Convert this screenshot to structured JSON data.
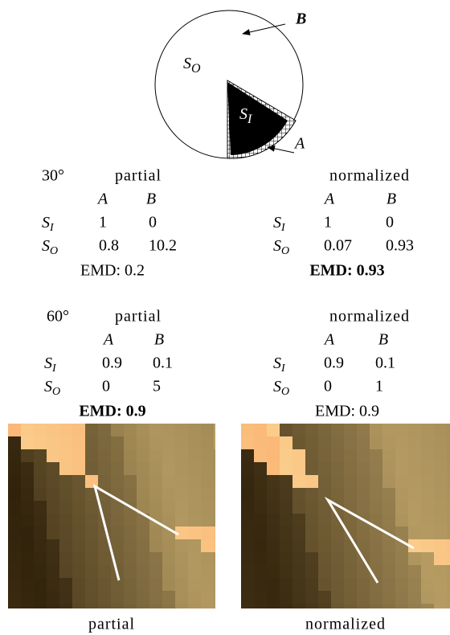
{
  "diagram": {
    "b_label": "B",
    "a_label": "A",
    "outer": {
      "main": "S",
      "sub": "O"
    },
    "inner": {
      "main": "S",
      "sub": "I"
    }
  },
  "panels": [
    {
      "angle": "30°",
      "tables": [
        {
          "heading": "partial",
          "columns": [
            "A",
            "B"
          ],
          "rows": [
            {
              "label": {
                "main": "S",
                "sub": "I"
              },
              "cells": [
                "1",
                "0"
              ]
            },
            {
              "label": {
                "main": "S",
                "sub": "O"
              },
              "cells": [
                "0.8",
                "10.2"
              ]
            }
          ],
          "emd": "EMD: 0.2",
          "emd_bold": false
        },
        {
          "heading": "normalized",
          "columns": [
            "A",
            "B"
          ],
          "rows": [
            {
              "label": {
                "main": "S",
                "sub": "I"
              },
              "cells": [
                "1",
                "0"
              ]
            },
            {
              "label": {
                "main": "S",
                "sub": "O"
              },
              "cells": [
                "0.07",
                "0.93"
              ]
            }
          ],
          "emd": "EMD: 0.93",
          "emd_bold": true
        }
      ]
    },
    {
      "angle": "60°",
      "tables": [
        {
          "heading": "partial",
          "columns": [
            "A",
            "B"
          ],
          "rows": [
            {
              "label": {
                "main": "S",
                "sub": "I"
              },
              "cells": [
                "0.9",
                "0.1"
              ]
            },
            {
              "label": {
                "main": "S",
                "sub": "O"
              },
              "cells": [
                "0",
                "5"
              ]
            }
          ],
          "emd": "EMD: 0.9",
          "emd_bold": true
        },
        {
          "heading": "normalized",
          "columns": [
            "A",
            "B"
          ],
          "rows": [
            {
              "label": {
                "main": "S",
                "sub": "I"
              },
              "cells": [
                "0.9",
                "0.1"
              ]
            },
            {
              "label": {
                "main": "S",
                "sub": "O"
              },
              "cells": [
                "0",
                "1"
              ]
            }
          ],
          "emd": "EMD: 0.9",
          "emd_bold": false
        }
      ]
    }
  ],
  "images": [
    {
      "caption": "partial"
    },
    {
      "caption": "normalized"
    }
  ]
}
